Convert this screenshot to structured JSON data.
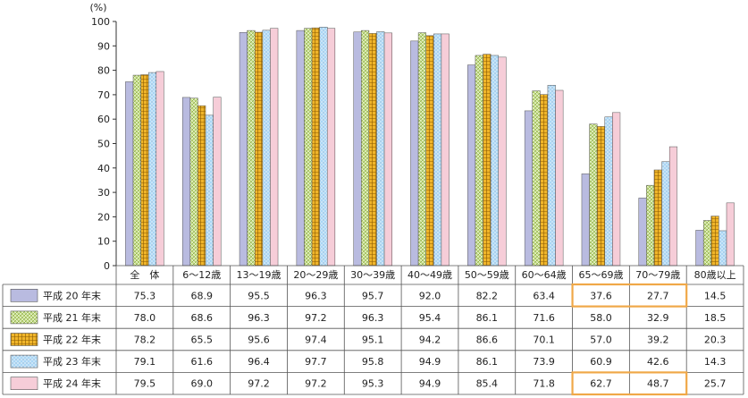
{
  "chart_data": {
    "type": "bar",
    "ylabel": "(%)",
    "ylim": [
      0,
      100
    ],
    "yticks": [
      0,
      10,
      20,
      30,
      40,
      50,
      60,
      70,
      80,
      90,
      100
    ],
    "categories": [
      "全　体",
      "6～12歳",
      "13～19歳",
      "20～29歳",
      "30～39歳",
      "40～49歳",
      "50～59歳",
      "60～64歳",
      "65～69歳",
      "70～79歳",
      "80歳以上"
    ],
    "series": [
      {
        "name": "平成 20 年末",
        "color": "#b9bbe0",
        "pattern": "solid",
        "values": [
          75.3,
          68.9,
          95.5,
          96.3,
          95.7,
          92.0,
          82.2,
          63.4,
          37.6,
          27.7,
          14.5
        ]
      },
      {
        "name": "平成 21 年末",
        "color": "#c9e28a",
        "pattern": "diag",
        "values": [
          78.0,
          68.6,
          96.3,
          97.2,
          96.3,
          95.4,
          86.1,
          71.6,
          58.0,
          32.9,
          18.5
        ]
      },
      {
        "name": "平成 22 年末",
        "color": "#f0b52a",
        "pattern": "grid",
        "values": [
          78.2,
          65.5,
          95.6,
          97.4,
          95.1,
          94.2,
          86.6,
          70.1,
          57.0,
          39.2,
          20.3
        ]
      },
      {
        "name": "平成 23 年末",
        "color": "#a9d6f5",
        "pattern": "dots",
        "values": [
          79.1,
          61.6,
          96.4,
          97.7,
          95.8,
          94.9,
          86.1,
          73.9,
          60.9,
          42.6,
          14.3
        ]
      },
      {
        "name": "平成 24 年末",
        "color": "#f3b8c8",
        "pattern": "vlines",
        "values": [
          79.5,
          69.0,
          97.2,
          97.2,
          95.3,
          94.9,
          85.4,
          71.8,
          62.7,
          48.7,
          25.7
        ]
      }
    ],
    "display_values": [
      [
        "75.3",
        "68.9",
        "95.5",
        "96.3",
        "95.7",
        "92.0",
        "82.2",
        "63.4",
        "37.6",
        "27.7",
        "14.5"
      ],
      [
        "78.0",
        "68.6",
        "96.3",
        "97.2",
        "96.3",
        "95.4",
        "86.1",
        "71.6",
        "58.0",
        "32.9",
        "18.5"
      ],
      [
        "78.2",
        "65.5",
        "95.6",
        "97.4",
        "95.1",
        "94.2",
        "86.6",
        "70.1",
        "57.0",
        "39.2",
        "20.3"
      ],
      [
        "79.1",
        "61.6",
        "96.4",
        "97.7",
        "95.8",
        "94.9",
        "86.1",
        "73.9",
        "60.9",
        "42.6",
        "14.3"
      ],
      [
        "79.5",
        "69.0",
        "97.2",
        "97.2",
        "95.3",
        "94.9",
        "85.4",
        "71.8",
        "62.7",
        "48.7",
        "25.7"
      ]
    ],
    "highlight_color": "#f0a848",
    "highlights": [
      {
        "series": [
          0
        ],
        "categories": [
          8,
          9
        ]
      },
      {
        "series": [
          4
        ],
        "categories": [
          8,
          9
        ]
      }
    ]
  }
}
